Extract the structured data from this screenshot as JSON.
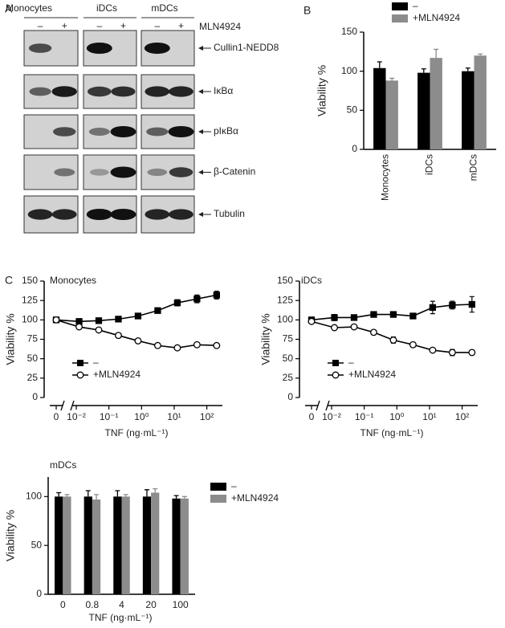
{
  "blot": {
    "panel_label": "A",
    "columns": [
      "Monocytes",
      "iDCs",
      "mDCs"
    ],
    "lane_signs": [
      "–",
      "+"
    ],
    "treatment": "MLN4924",
    "proteins": [
      "Cullin1-NEDD8",
      "IκBα",
      "pIκBα",
      "β-Catenin",
      "Tubulin"
    ]
  },
  "chart_data": [
    {
      "type": "bar",
      "panel_label": "B",
      "categories": [
        "Monocytes",
        "iDCs",
        "mDCs"
      ],
      "series": [
        {
          "name": "–",
          "color": "#000000",
          "values": [
            104,
            98,
            100
          ],
          "errors": [
            8,
            5,
            4
          ]
        },
        {
          "name": "+MLN4924",
          "color": "#8c8c8c",
          "values": [
            88,
            117,
            120
          ],
          "errors": [
            3,
            11,
            2
          ]
        }
      ],
      "ylabel": "Viability %",
      "ylim": [
        0,
        150
      ],
      "yticks": [
        0,
        50,
        100,
        150
      ]
    },
    {
      "type": "line",
      "panel_label": "C",
      "title": "Monocytes",
      "xscale": "log",
      "broken_axis": true,
      "x": [
        0,
        0.0122,
        0.0488,
        0.195,
        0.781,
        3.125,
        12.5,
        50,
        200
      ],
      "series": [
        {
          "name": "–",
          "color": "#000000",
          "marker": "square",
          "marker_fill": "#000000",
          "values": [
            100,
            98,
            99,
            101,
            105,
            112,
            122,
            127,
            132
          ],
          "errors": [
            3,
            2,
            2,
            2,
            2,
            3,
            4,
            5,
            5
          ]
        },
        {
          "name": "+MLN4924",
          "color": "#000000",
          "marker": "circle",
          "marker_fill": "#ffffff",
          "values": [
            100,
            91,
            87,
            80,
            73,
            67,
            64,
            68,
            67
          ],
          "errors": [
            2,
            2,
            2,
            2,
            2,
            2,
            2,
            2,
            2
          ]
        }
      ],
      "xlabel": "TNF (ng·mL⁻¹)",
      "ylabel": "Viability %",
      "xlim": [
        0.006,
        300
      ],
      "ylim": [
        0,
        150
      ],
      "xticks": [
        0,
        {
          "value": 0.01,
          "label": "10⁻²"
        },
        {
          "value": 0.1,
          "label": "10⁻¹"
        },
        {
          "value": 1,
          "label": "10⁰"
        },
        {
          "value": 10,
          "label": "10¹"
        },
        {
          "value": 100,
          "label": "10²"
        }
      ],
      "yticks": [
        0,
        25,
        50,
        75,
        100,
        125,
        150
      ]
    },
    {
      "type": "line",
      "title": "iDCs",
      "xscale": "log",
      "broken_axis": true,
      "x": [
        0,
        0.0122,
        0.0488,
        0.195,
        0.781,
        3.125,
        12.5,
        50,
        200
      ],
      "series": [
        {
          "name": "–",
          "color": "#000000",
          "marker": "square",
          "marker_fill": "#000000",
          "values": [
            100,
            103,
            103,
            107,
            107,
            105,
            116,
            119,
            120
          ],
          "errors": [
            3,
            4,
            3,
            3,
            3,
            3,
            8,
            5,
            10
          ]
        },
        {
          "name": "+MLN4924",
          "color": "#000000",
          "marker": "circle",
          "marker_fill": "#ffffff",
          "values": [
            98,
            90,
            91,
            84,
            74,
            68,
            61,
            58,
            58
          ],
          "errors": [
            2,
            2,
            2,
            2,
            4,
            3,
            2,
            4,
            2
          ]
        }
      ],
      "xlabel": "TNF (ng·mL⁻¹)",
      "ylabel": "Viability %",
      "xlim": [
        0.006,
        300
      ],
      "ylim": [
        0,
        150
      ],
      "xticks": [
        0,
        {
          "value": 0.01,
          "label": "10⁻²"
        },
        {
          "value": 0.1,
          "label": "10⁻¹"
        },
        {
          "value": 1,
          "label": "10⁰"
        },
        {
          "value": 10,
          "label": "10¹"
        },
        {
          "value": 100,
          "label": "10²"
        }
      ],
      "yticks": [
        0,
        25,
        50,
        75,
        100,
        125,
        150
      ]
    },
    {
      "type": "bar",
      "title": "mDCs",
      "categories": [
        "0",
        "0.8",
        "4",
        "20",
        "100"
      ],
      "series": [
        {
          "name": "–",
          "color": "#000000",
          "values": [
            100,
            100,
            100,
            100,
            98
          ],
          "errors": [
            4,
            6,
            6,
            7,
            3
          ]
        },
        {
          "name": "+MLN4924",
          "color": "#8c8c8c",
          "values": [
            100,
            97,
            100,
            104,
            98
          ],
          "errors": [
            2,
            5,
            2,
            4,
            2
          ]
        }
      ],
      "xlabel": "TNF (ng·mL⁻¹)",
      "ylabel": "Viability %",
      "ylim": [
        0,
        120
      ],
      "yticks": [
        0,
        50,
        100
      ]
    }
  ]
}
